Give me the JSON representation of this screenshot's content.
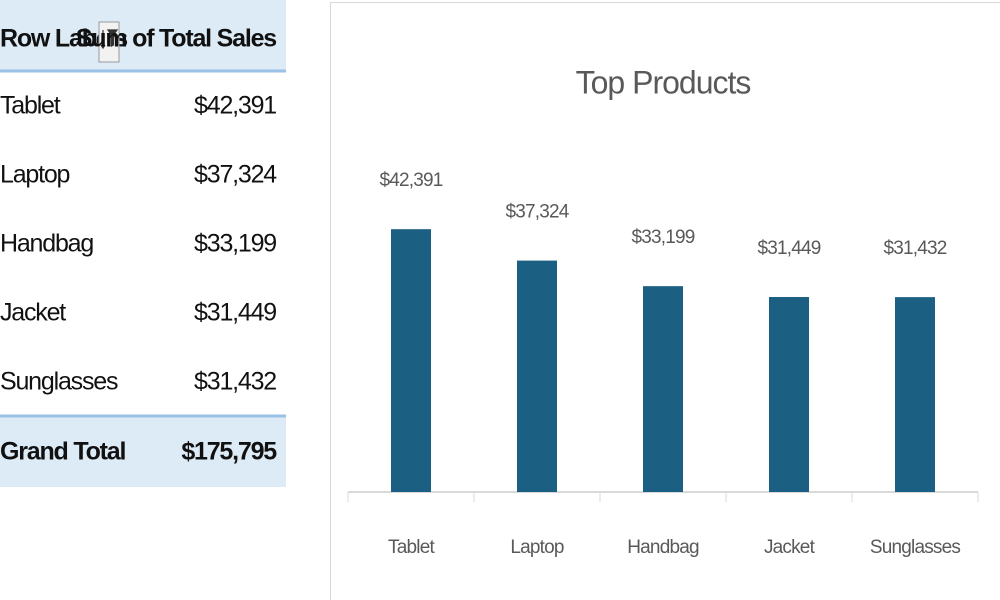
{
  "table": {
    "headers": [
      "Row Labels",
      "Sum of Total Sales"
    ],
    "rows": [
      [
        "Tablet",
        "$42,391"
      ],
      [
        "Laptop",
        "$37,324"
      ],
      [
        "Handbag",
        "$33,199"
      ],
      [
        "Jacket",
        "$31,449"
      ],
      [
        "Sunglasses",
        "$31,432"
      ]
    ],
    "total": [
      "Grand Total",
      "$175,795"
    ]
  },
  "chart_data": {
    "type": "bar",
    "title": "Top Products",
    "categories": [
      "Tablet",
      "Laptop",
      "Handbag",
      "Jacket",
      "Sunglasses"
    ],
    "values": [
      42391,
      37324,
      33199,
      31449,
      31432
    ],
    "value_labels": [
      "$42,391",
      "$37,324",
      "$33,199",
      "$31,449",
      "$31,432"
    ],
    "color": "#1b5f82",
    "ylim": [
      0,
      45000
    ]
  }
}
